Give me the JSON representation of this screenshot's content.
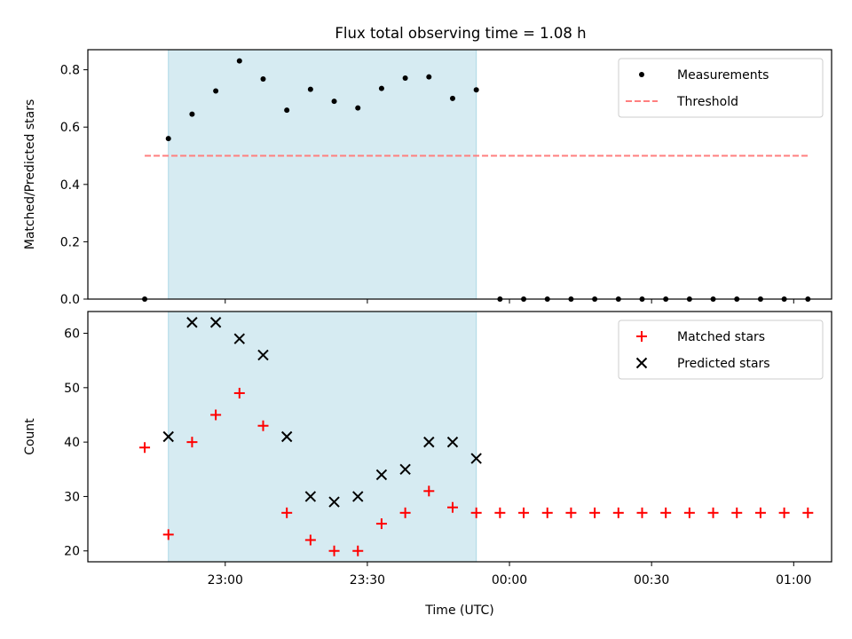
{
  "figure": {
    "title": "Flux total observing time = 1.08 h"
  },
  "chart_data": [
    {
      "type": "scatter",
      "ylabel": "Matched/Predicted stars",
      "ylim": [
        0,
        0.87
      ],
      "yticks": [
        0.0,
        0.2,
        0.4,
        0.6,
        0.8
      ],
      "ytick_labels": [
        "0.0",
        "0.2",
        "0.4",
        "0.6",
        "0.8"
      ],
      "xlim": [
        "22:31",
        "01:08"
      ],
      "xticks": [
        "23:00",
        "23:30",
        "00:00",
        "00:30",
        "01:00"
      ],
      "xtick_labels": [],
      "shaded_span": [
        "22:48",
        "23:53"
      ],
      "series": [
        {
          "name": "Measurements",
          "marker": "dot",
          "color": "#000000",
          "x": [
            "22:43",
            "22:48",
            "22:53",
            "22:58",
            "23:03",
            "23:08",
            "23:13",
            "23:18",
            "23:23",
            "23:28",
            "23:33",
            "23:38",
            "23:43",
            "23:48",
            "23:53",
            "23:58",
            "00:03",
            "00:08",
            "00:13",
            "00:18",
            "00:23",
            "00:28",
            "00:33",
            "00:38",
            "00:43",
            "00:48",
            "00:53",
            "00:58",
            "01:03"
          ],
          "y": [
            0.0,
            0.56,
            0.645,
            0.726,
            0.831,
            0.768,
            0.659,
            0.732,
            0.69,
            0.667,
            0.735,
            0.771,
            0.775,
            0.7,
            0.73,
            0.0,
            0.0,
            0.0,
            0.0,
            0.0,
            0.0,
            0.0,
            0.0,
            0.0,
            0.0,
            0.0,
            0.0,
            0.0,
            0.0
          ]
        },
        {
          "name": "Threshold",
          "marker": "dashed-line",
          "color": "#ff7f7f",
          "x": [
            "22:43",
            "01:03"
          ],
          "y": [
            0.5,
            0.5
          ]
        }
      ],
      "legend": {
        "position": "top-right",
        "entries": [
          "Measurements",
          "Threshold"
        ]
      }
    },
    {
      "type": "scatter",
      "ylabel": "Count",
      "xlabel": "Time (UTC)",
      "ylim": [
        18,
        64
      ],
      "yticks": [
        20,
        30,
        40,
        50,
        60
      ],
      "ytick_labels": [
        "20",
        "30",
        "40",
        "50",
        "60"
      ],
      "xlim": [
        "22:31",
        "01:08"
      ],
      "xticks": [
        "23:00",
        "23:30",
        "00:00",
        "00:30",
        "01:00"
      ],
      "xtick_labels": [
        "23:00",
        "23:30",
        "00:00",
        "00:30",
        "01:00"
      ],
      "shaded_span": [
        "22:48",
        "23:53"
      ],
      "series": [
        {
          "name": "Matched stars",
          "marker": "plus",
          "color": "#ff0000",
          "x": [
            "22:43",
            "22:48",
            "22:53",
            "22:58",
            "23:03",
            "23:08",
            "23:13",
            "23:18",
            "23:23",
            "23:28",
            "23:33",
            "23:38",
            "23:43",
            "23:48",
            "23:53",
            "23:58",
            "00:03",
            "00:08",
            "00:13",
            "00:18",
            "00:23",
            "00:28",
            "00:33",
            "00:38",
            "00:43",
            "00:48",
            "00:53",
            "00:58",
            "01:03"
          ],
          "y": [
            39,
            23,
            40,
            45,
            49,
            43,
            27,
            22,
            20,
            20,
            25,
            27,
            31,
            28,
            27,
            27,
            27,
            27,
            27,
            27,
            27,
            27,
            27,
            27,
            27,
            27,
            27,
            27,
            27
          ]
        },
        {
          "name": "Predicted stars",
          "marker": "x",
          "color": "#000000",
          "x": [
            "22:48",
            "22:53",
            "22:58",
            "23:03",
            "23:08",
            "23:13",
            "23:18",
            "23:23",
            "23:28",
            "23:33",
            "23:38",
            "23:43",
            "23:48",
            "23:53"
          ],
          "y": [
            41,
            62,
            62,
            59,
            56,
            41,
            30,
            29,
            30,
            34,
            35,
            40,
            40,
            37
          ]
        }
      ],
      "legend": {
        "position": "top-right",
        "entries": [
          "Matched stars",
          "Predicted stars"
        ]
      }
    }
  ]
}
